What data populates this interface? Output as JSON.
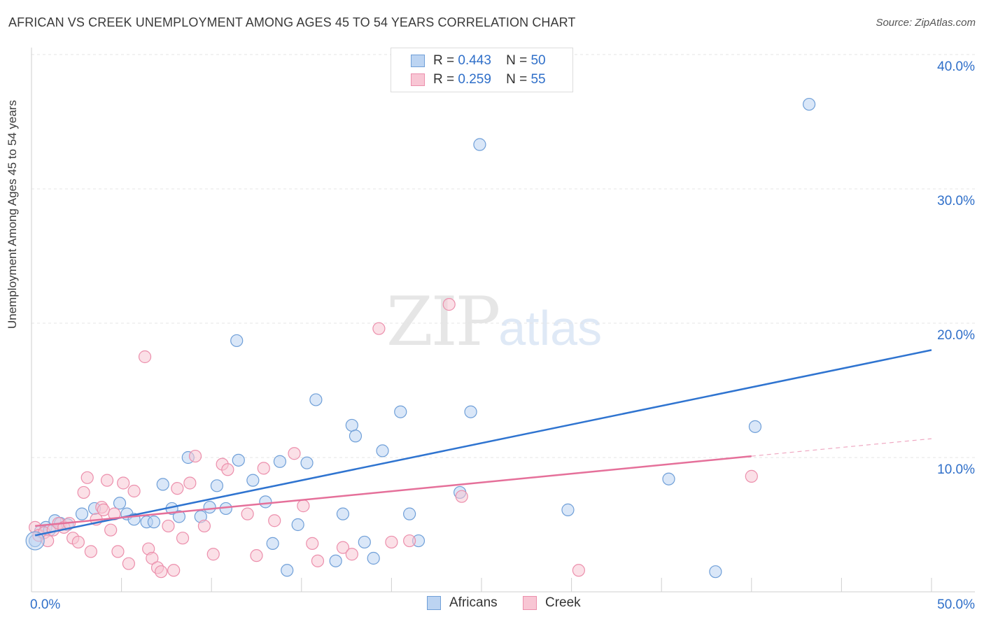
{
  "header": {
    "title": "AFRICAN VS CREEK UNEMPLOYMENT AMONG AGES 45 TO 54 YEARS CORRELATION CHART",
    "source": "Source: ZipAtlas.com"
  },
  "watermark": {
    "zip": "ZIP",
    "atlas": "atlas"
  },
  "legend_top": {
    "rows": [
      {
        "r_label": "R =",
        "r_value": "0.443",
        "n_label": "N =",
        "n_value": "50"
      },
      {
        "r_label": "R =",
        "r_value": "0.259",
        "n_label": "N =",
        "n_value": "55"
      }
    ]
  },
  "colors": {
    "africans_fill": "#bcd4f2",
    "africans_stroke": "#6f9fd8",
    "africans_line": "#2f74d0",
    "creek_fill": "#f8c6d4",
    "creek_stroke": "#ec8fac",
    "creek_line": "#e5709a",
    "axis_text": "#2f6fc9",
    "grid": "#e4e4e4"
  },
  "chart_data": {
    "type": "scatter",
    "title": "AFRICAN VS CREEK UNEMPLOYMENT AMONG AGES 45 TO 54 YEARS CORRELATION CHART",
    "xlabel": "",
    "ylabel": "Unemployment Among Ages 45 to 54 years",
    "xlim": [
      0,
      50
    ],
    "ylim": [
      0,
      42
    ],
    "x_tick_labels": [
      "0.0%",
      "50.0%"
    ],
    "y_ticks": [
      10,
      20,
      30,
      40
    ],
    "y_tick_labels": [
      "10.0%",
      "20.0%",
      "30.0%",
      "40.0%"
    ],
    "legend_position": "bottom-center",
    "series": [
      {
        "name": "Africans",
        "R": 0.443,
        "N": 50,
        "trend": {
          "x": [
            0.2,
            50
          ],
          "y": [
            4.2,
            18.0
          ]
        },
        "points": [
          [
            0.2,
            3.8
          ],
          [
            0.5,
            4.5
          ],
          [
            0.8,
            4.8
          ],
          [
            1.0,
            4.6
          ],
          [
            1.3,
            5.3
          ],
          [
            1.6,
            5.1
          ],
          [
            2.0,
            5.0
          ],
          [
            2.8,
            5.8
          ],
          [
            3.5,
            6.2
          ],
          [
            4.9,
            6.6
          ],
          [
            5.3,
            5.8
          ],
          [
            5.7,
            5.4
          ],
          [
            6.4,
            5.2
          ],
          [
            6.8,
            5.2
          ],
          [
            7.3,
            8.0
          ],
          [
            7.8,
            6.2
          ],
          [
            8.2,
            5.6
          ],
          [
            8.7,
            10.0
          ],
          [
            9.4,
            5.6
          ],
          [
            9.9,
            6.3
          ],
          [
            10.3,
            7.9
          ],
          [
            10.8,
            6.2
          ],
          [
            11.4,
            18.7
          ],
          [
            11.5,
            9.8
          ],
          [
            12.3,
            8.3
          ],
          [
            13.0,
            6.7
          ],
          [
            13.4,
            3.6
          ],
          [
            13.8,
            9.7
          ],
          [
            14.2,
            1.6
          ],
          [
            14.8,
            5.0
          ],
          [
            15.3,
            9.6
          ],
          [
            15.8,
            14.3
          ],
          [
            16.9,
            2.3
          ],
          [
            17.3,
            5.8
          ],
          [
            17.8,
            12.4
          ],
          [
            18.0,
            11.6
          ],
          [
            18.5,
            3.7
          ],
          [
            19.0,
            2.5
          ],
          [
            19.5,
            10.5
          ],
          [
            20.5,
            13.4
          ],
          [
            21.0,
            5.8
          ],
          [
            21.5,
            3.8
          ],
          [
            23.8,
            7.4
          ],
          [
            24.4,
            13.4
          ],
          [
            24.9,
            33.3
          ],
          [
            29.8,
            6.1
          ],
          [
            35.4,
            8.4
          ],
          [
            38.0,
            1.5
          ],
          [
            40.2,
            12.3
          ],
          [
            43.2,
            36.3
          ]
        ]
      },
      {
        "name": "Creek",
        "R": 0.259,
        "N": 55,
        "trend": {
          "x": [
            0.2,
            40.0
          ],
          "y": [
            4.9,
            10.1
          ]
        },
        "trend_extension": {
          "x": [
            40.0,
            50
          ],
          "y": [
            10.1,
            11.4
          ]
        },
        "points": [
          [
            0.2,
            4.8
          ],
          [
            0.4,
            4.2
          ],
          [
            0.7,
            4.4
          ],
          [
            0.9,
            3.8
          ],
          [
            1.2,
            4.6
          ],
          [
            1.5,
            5.1
          ],
          [
            1.8,
            4.8
          ],
          [
            2.1,
            5.1
          ],
          [
            2.3,
            4.0
          ],
          [
            2.6,
            3.7
          ],
          [
            2.9,
            7.4
          ],
          [
            3.1,
            8.5
          ],
          [
            3.3,
            3.0
          ],
          [
            3.6,
            5.4
          ],
          [
            3.9,
            6.3
          ],
          [
            4.0,
            6.1
          ],
          [
            4.2,
            8.3
          ],
          [
            4.4,
            4.6
          ],
          [
            4.6,
            5.8
          ],
          [
            4.8,
            3.0
          ],
          [
            5.1,
            8.1
          ],
          [
            5.4,
            2.1
          ],
          [
            5.7,
            7.5
          ],
          [
            6.3,
            17.5
          ],
          [
            6.5,
            3.2
          ],
          [
            6.7,
            2.5
          ],
          [
            7.0,
            1.8
          ],
          [
            7.2,
            1.5
          ],
          [
            7.6,
            4.9
          ],
          [
            7.9,
            1.6
          ],
          [
            8.1,
            7.7
          ],
          [
            8.4,
            4.0
          ],
          [
            8.8,
            8.1
          ],
          [
            9.1,
            10.1
          ],
          [
            9.6,
            4.9
          ],
          [
            10.1,
            2.8
          ],
          [
            10.6,
            9.5
          ],
          [
            10.9,
            9.1
          ],
          [
            12.0,
            5.8
          ],
          [
            12.5,
            2.7
          ],
          [
            12.9,
            9.2
          ],
          [
            13.5,
            5.3
          ],
          [
            14.6,
            10.3
          ],
          [
            15.1,
            6.4
          ],
          [
            15.6,
            3.6
          ],
          [
            15.9,
            2.3
          ],
          [
            17.3,
            3.3
          ],
          [
            17.8,
            2.8
          ],
          [
            19.3,
            19.6
          ],
          [
            20.0,
            3.7
          ],
          [
            21.0,
            3.8
          ],
          [
            23.2,
            21.4
          ],
          [
            23.9,
            7.1
          ],
          [
            30.4,
            1.6
          ],
          [
            40.0,
            8.6
          ]
        ]
      }
    ]
  },
  "bottom_legend": [
    {
      "label": "Africans"
    },
    {
      "label": "Creek"
    }
  ]
}
